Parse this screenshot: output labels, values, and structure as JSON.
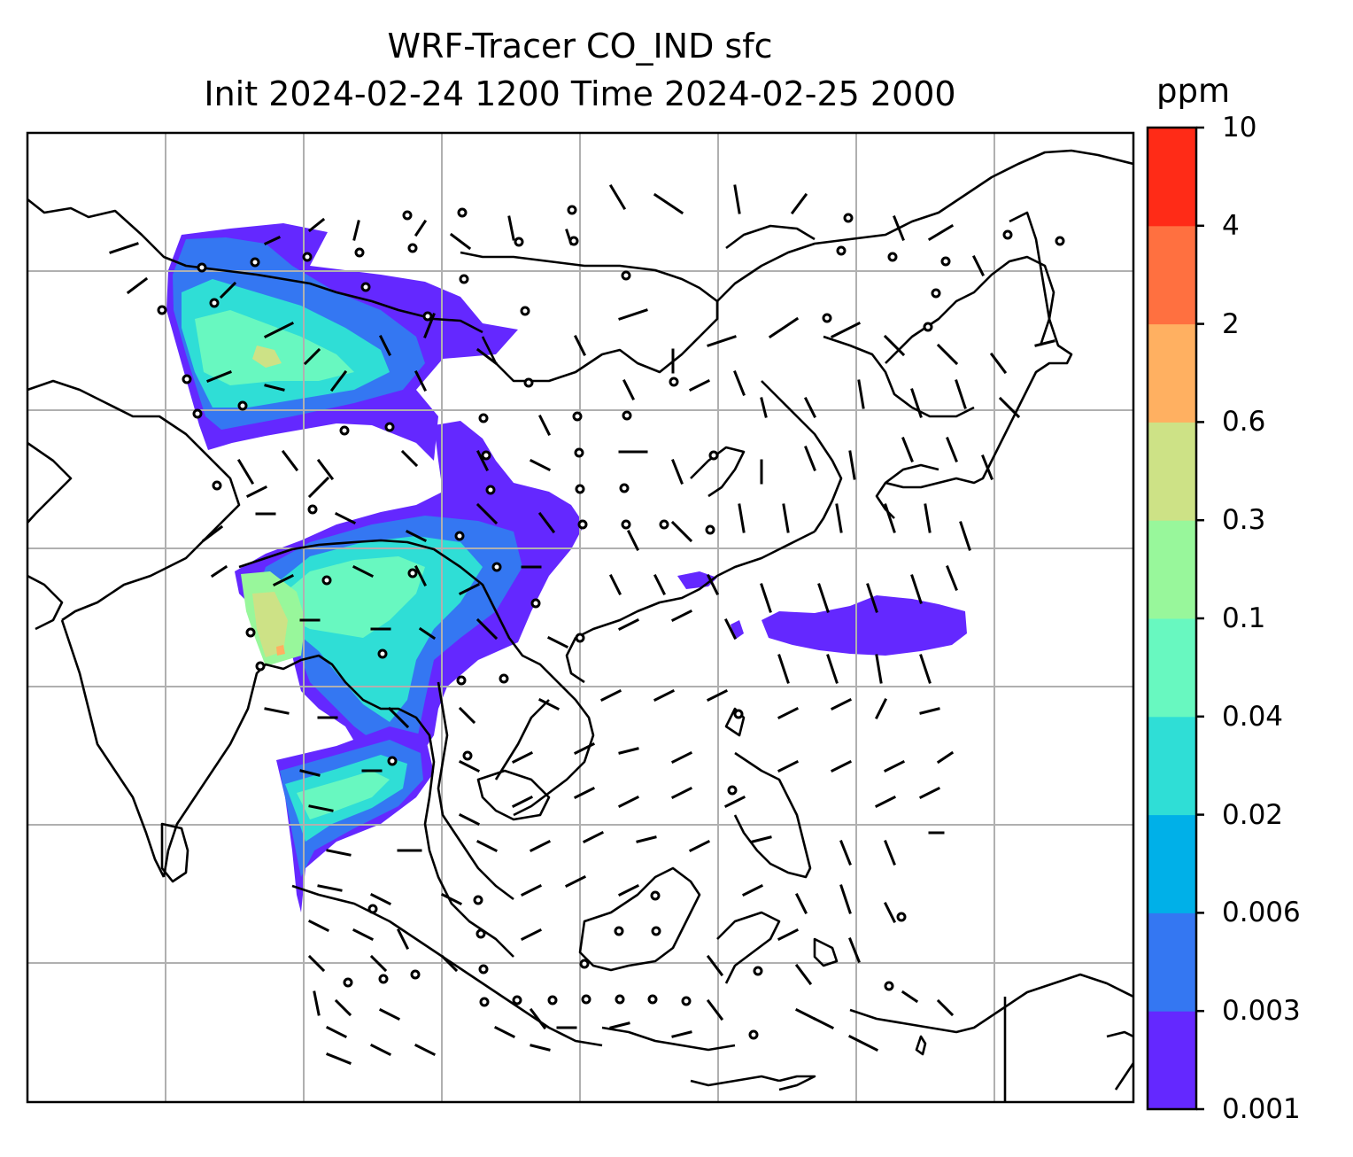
{
  "title": {
    "line1": "WRF-Tracer CO_IND sfc",
    "line2": "Init 2024-02-24 1200 Time 2024-02-25 2000"
  },
  "colorbar": {
    "units": "ppm",
    "ticks": [
      "0.001",
      "0.003",
      "0.006",
      "0.02",
      "0.04",
      "0.1",
      "0.3",
      "0.6",
      "2",
      "4",
      "10"
    ],
    "colors": [
      "#6428ff",
      "#3477f2",
      "#00b0e8",
      "#2fded6",
      "#68f8c0",
      "#98f79b",
      "#cde286",
      "#ffb061",
      "#ff7040",
      "#ff2b17"
    ]
  },
  "map": {
    "gridlines": true,
    "contour_level_colors": {
      "lowest": "#6428ff",
      "low": "#3477f2",
      "mid": "#2fded6",
      "high": "#98f79b",
      "peak": "#ffb061"
    },
    "coastline_color": "#000000",
    "grid_color": "#b0b0b0"
  }
}
